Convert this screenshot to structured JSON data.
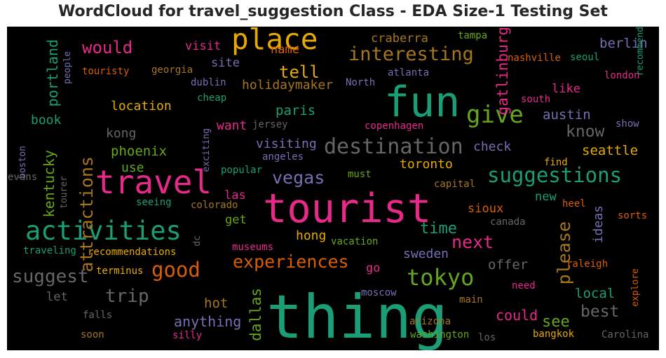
{
  "chart_data": {
    "type": "wordcloud",
    "title": "WordCloud for travel_suggestion Class - EDA Size-1 Testing Set",
    "background": "#000000",
    "palette": [
      "#1b9e77",
      "#d95f02",
      "#7570b3",
      "#e7298a",
      "#66a61e",
      "#e6ab02",
      "#a6761d",
      "#666666"
    ],
    "words": [
      {
        "text": "thing",
        "color": "#1b9e77",
        "orient": "h"
      },
      {
        "text": "tourist",
        "color": "#e7298a",
        "orient": "h"
      },
      {
        "text": "fun",
        "color": "#1b9e77",
        "orient": "h"
      },
      {
        "text": "travel",
        "color": "#e7298a",
        "orient": "h"
      },
      {
        "text": "place",
        "color": "#e6ab02",
        "orient": "h"
      },
      {
        "text": "activities",
        "color": "#1b9e77",
        "orient": "h"
      },
      {
        "text": "destination",
        "color": "#666666",
        "orient": "h"
      },
      {
        "text": "give",
        "color": "#66a61e",
        "orient": "h"
      },
      {
        "text": "suggestions",
        "color": "#1b9e77",
        "orient": "h"
      },
      {
        "text": "attractions",
        "color": "#a6761d",
        "orient": "v"
      },
      {
        "text": "tokyo",
        "color": "#66a61e",
        "orient": "h"
      },
      {
        "text": "good",
        "color": "#d95f02",
        "orient": "h"
      },
      {
        "text": "interesting",
        "color": "#a6761d",
        "orient": "h"
      },
      {
        "text": "trip",
        "color": "#666666",
        "orient": "h"
      },
      {
        "text": "suggest",
        "color": "#666666",
        "orient": "h"
      },
      {
        "text": "experiences",
        "color": "#d95f02",
        "orient": "h"
      },
      {
        "text": "vegas",
        "color": "#7570b3",
        "orient": "h"
      },
      {
        "text": "please",
        "color": "#a6761d",
        "orient": "v"
      },
      {
        "text": "next",
        "color": "#e7298a",
        "orient": "h"
      },
      {
        "text": "would",
        "color": "#e7298a",
        "orient": "h"
      },
      {
        "text": "tell",
        "color": "#e6ab02",
        "orient": "h"
      },
      {
        "text": "know",
        "color": "#666666",
        "orient": "h"
      },
      {
        "text": "best",
        "color": "#666666",
        "orient": "h"
      },
      {
        "text": "time",
        "color": "#1b9e77",
        "orient": "h"
      },
      {
        "text": "see",
        "color": "#66a61e",
        "orient": "h"
      },
      {
        "text": "gatlinburg",
        "color": "#e7298a",
        "orient": "v"
      },
      {
        "text": "dallas",
        "color": "#66a61e",
        "orient": "v"
      },
      {
        "text": "anything",
        "color": "#7570b3",
        "orient": "h"
      },
      {
        "text": "could",
        "color": "#e7298a",
        "orient": "h"
      },
      {
        "text": "portland",
        "color": "#1b9e77",
        "orient": "v"
      },
      {
        "text": "kentucky",
        "color": "#66a61e",
        "orient": "v"
      },
      {
        "text": "paris",
        "color": "#1b9e77",
        "orient": "h"
      },
      {
        "text": "berlin",
        "color": "#7570b3",
        "orient": "h"
      },
      {
        "text": "austin",
        "color": "#7570b3",
        "orient": "h"
      },
      {
        "text": "seattle",
        "color": "#e6ab02",
        "orient": "h"
      },
      {
        "text": "toronto",
        "color": "#e6ab02",
        "orient": "h"
      },
      {
        "text": "sweden",
        "color": "#7570b3",
        "orient": "h"
      },
      {
        "text": "local",
        "color": "#1b9e77",
        "orient": "h"
      },
      {
        "text": "offer",
        "color": "#666666",
        "orient": "h"
      },
      {
        "text": "hot",
        "color": "#a6761d",
        "orient": "h"
      },
      {
        "text": "phoenix",
        "color": "#66a61e",
        "orient": "h"
      },
      {
        "text": "visiting",
        "color": "#7570b3",
        "orient": "h"
      },
      {
        "text": "location",
        "color": "#e6ab02",
        "orient": "h"
      },
      {
        "text": "holidaymaker",
        "color": "#a6761d",
        "orient": "h"
      },
      {
        "text": "check",
        "color": "#7570b3",
        "orient": "h"
      },
      {
        "text": "craberra",
        "color": "#a6761d",
        "orient": "h"
      },
      {
        "text": "visit",
        "color": "#e7298a",
        "orient": "h"
      },
      {
        "text": "name",
        "color": "#d95f02",
        "orient": "h"
      },
      {
        "text": "site",
        "color": "#7570b3",
        "orient": "h"
      },
      {
        "text": "like",
        "color": "#e7298a",
        "orient": "h"
      },
      {
        "text": "kong",
        "color": "#666666",
        "orient": "h"
      },
      {
        "text": "hong",
        "color": "#e6ab02",
        "orient": "h"
      },
      {
        "text": "book",
        "color": "#1b9e77",
        "orient": "h"
      },
      {
        "text": "want",
        "color": "#e7298a",
        "orient": "h"
      },
      {
        "text": "use",
        "color": "#66a61e",
        "orient": "h"
      },
      {
        "text": "get",
        "color": "#66a61e",
        "orient": "h"
      },
      {
        "text": "new",
        "color": "#1b9e77",
        "orient": "h"
      },
      {
        "text": "sioux",
        "color": "#d95f02",
        "orient": "h"
      },
      {
        "text": "ideas",
        "color": "#7570b3",
        "orient": "v"
      },
      {
        "text": "las",
        "color": "#e7298a",
        "orient": "h"
      },
      {
        "text": "go",
        "color": "#e7298a",
        "orient": "h"
      },
      {
        "text": "let",
        "color": "#666666",
        "orient": "h"
      },
      {
        "text": "tampa",
        "color": "#66a61e",
        "orient": "h"
      },
      {
        "text": "nashville",
        "color": "#d95f02",
        "orient": "h"
      },
      {
        "text": "seoul",
        "color": "#1b9e77",
        "orient": "h"
      },
      {
        "text": "london",
        "color": "#e7298a",
        "orient": "h"
      },
      {
        "text": "recommend",
        "color": "#1b9e77",
        "orient": "v"
      },
      {
        "text": "people",
        "color": "#7570b3",
        "orient": "v"
      },
      {
        "text": "touristy",
        "color": "#d95f02",
        "orient": "h"
      },
      {
        "text": "georgia",
        "color": "#a6761d",
        "orient": "h"
      },
      {
        "text": "atlanta",
        "color": "#7570b3",
        "orient": "h"
      },
      {
        "text": "dublin",
        "color": "#7570b3",
        "orient": "h"
      },
      {
        "text": "North",
        "color": "#7570b3",
        "orient": "h"
      },
      {
        "text": "cheap",
        "color": "#1b9e77",
        "orient": "h"
      },
      {
        "text": "south",
        "color": "#e7298a",
        "orient": "h"
      },
      {
        "text": "jersey",
        "color": "#666666",
        "orient": "h"
      },
      {
        "text": "copenhagen",
        "color": "#e7298a",
        "orient": "h"
      },
      {
        "text": "show",
        "color": "#7570b3",
        "orient": "h"
      },
      {
        "text": "exciting",
        "color": "#7570b3",
        "orient": "v"
      },
      {
        "text": "angeles",
        "color": "#7570b3",
        "orient": "h"
      },
      {
        "text": "find",
        "color": "#e6ab02",
        "orient": "h"
      },
      {
        "text": "boston",
        "color": "#7570b3",
        "orient": "v"
      },
      {
        "text": "popular",
        "color": "#1b9e77",
        "orient": "h"
      },
      {
        "text": "must",
        "color": "#66a61e",
        "orient": "h"
      },
      {
        "text": "evans",
        "color": "#666666",
        "orient": "h"
      },
      {
        "text": "tourer",
        "color": "#666666",
        "orient": "v"
      },
      {
        "text": "capital",
        "color": "#a6761d",
        "orient": "h"
      },
      {
        "text": "seeing",
        "color": "#1b9e77",
        "orient": "h"
      },
      {
        "text": "colorado",
        "color": "#a6761d",
        "orient": "h"
      },
      {
        "text": "heel",
        "color": "#d95f02",
        "orient": "h"
      },
      {
        "text": "sorts",
        "color": "#d95f02",
        "orient": "h"
      },
      {
        "text": "canada",
        "color": "#666666",
        "orient": "h"
      },
      {
        "text": "dc",
        "color": "#666666",
        "orient": "v"
      },
      {
        "text": "traveling",
        "color": "#1b9e77",
        "orient": "h"
      },
      {
        "text": "recommendations",
        "color": "#e6ab02",
        "orient": "h"
      },
      {
        "text": "museums",
        "color": "#e7298a",
        "orient": "h"
      },
      {
        "text": "vacation",
        "color": "#66a61e",
        "orient": "h"
      },
      {
        "text": "raleigh",
        "color": "#d95f02",
        "orient": "h"
      },
      {
        "text": "terminus",
        "color": "#e6ab02",
        "orient": "h"
      },
      {
        "text": "explore",
        "color": "#d95f02",
        "orient": "v"
      },
      {
        "text": "moscow",
        "color": "#7570b3",
        "orient": "h"
      },
      {
        "text": "main",
        "color": "#a6761d",
        "orient": "h"
      },
      {
        "text": "need",
        "color": "#e7298a",
        "orient": "h"
      },
      {
        "text": "falls",
        "color": "#666666",
        "orient": "h"
      },
      {
        "text": "arizona",
        "color": "#a6761d",
        "orient": "h"
      },
      {
        "text": "soon",
        "color": "#a6761d",
        "orient": "h"
      },
      {
        "text": "silly",
        "color": "#e7298a",
        "orient": "h"
      },
      {
        "text": "washington",
        "color": "#66a61e",
        "orient": "h"
      },
      {
        "text": "los",
        "color": "#666666",
        "orient": "h"
      },
      {
        "text": "bangkok",
        "color": "#e6ab02",
        "orient": "h"
      },
      {
        "text": "Carolina",
        "color": "#666666",
        "orient": "h"
      }
    ]
  }
}
